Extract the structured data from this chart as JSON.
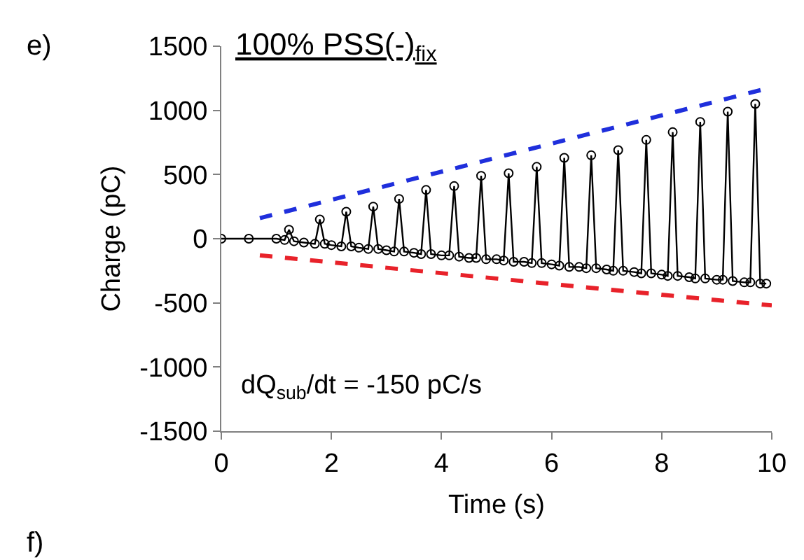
{
  "chart_data": {
    "type": "line",
    "title": "100% PSS(-)$_{fix}$",
    "xlabel": "Time (s)",
    "ylabel": "Charge (pC)",
    "annotations": [
      "e)",
      "dQ$_{sub}$/dt = -150 pC/s",
      "f)"
    ],
    "xlim": [
      0,
      10
    ],
    "xticks": [
      0,
      2,
      4,
      6,
      8,
      10
    ],
    "ylim": [
      -1500,
      1500
    ],
    "yticks": [
      -1500,
      -1000,
      -500,
      0,
      500,
      1000,
      1500
    ],
    "marker": "circle",
    "series": [
      {
        "color": "#000000",
        "x": [
          0,
          0.5,
          1.0,
          1.15,
          1.23,
          1.32,
          1.5,
          1.7,
          1.79,
          1.88,
          2.0,
          2.18,
          2.27,
          2.36,
          2.5,
          2.67,
          2.76,
          2.85,
          3.0,
          3.14,
          3.23,
          3.32,
          3.5,
          3.63,
          3.72,
          3.81,
          4.0,
          4.14,
          4.23,
          4.32,
          4.5,
          4.63,
          4.72,
          4.81,
          5.0,
          5.13,
          5.22,
          5.31,
          5.5,
          5.64,
          5.73,
          5.82,
          6.0,
          6.14,
          6.23,
          6.32,
          6.5,
          6.63,
          6.72,
          6.81,
          7.0,
          7.12,
          7.21,
          7.3,
          7.5,
          7.63,
          7.72,
          7.81,
          8.0,
          8.11,
          8.2,
          8.29,
          8.5,
          8.61,
          8.7,
          8.79,
          9.0,
          9.11,
          9.2,
          9.29,
          9.5,
          9.61,
          9.7,
          9.79,
          9.9
        ],
        "values": [
          0,
          0,
          0,
          -10,
          70,
          -20,
          -30,
          -40,
          150,
          -40,
          -50,
          -60,
          210,
          -60,
          -70,
          -80,
          250,
          -80,
          -90,
          -100,
          310,
          -100,
          -110,
          -120,
          380,
          -120,
          -130,
          -130,
          410,
          -140,
          -150,
          -150,
          490,
          -160,
          -160,
          -170,
          510,
          -180,
          -180,
          -190,
          560,
          -190,
          -200,
          -210,
          630,
          -220,
          -220,
          -230,
          650,
          -230,
          -240,
          -250,
          690,
          -250,
          -260,
          -270,
          770,
          -270,
          -280,
          -290,
          830,
          -290,
          -300,
          -310,
          910,
          -310,
          -320,
          -320,
          990,
          -330,
          -340,
          -340,
          1050,
          -350,
          -350
        ]
      },
      {
        "type": "line",
        "color": "#1f2fdc",
        "marker": "none",
        "line_style": "dashed",
        "x": [
          0.7,
          10
        ],
        "values": [
          160,
          1180
        ]
      },
      {
        "type": "line",
        "color": "#e8222a",
        "marker": "none",
        "line_style": "dashed",
        "x": [
          0.7,
          10
        ],
        "values": [
          -130,
          -520
        ]
      }
    ]
  }
}
